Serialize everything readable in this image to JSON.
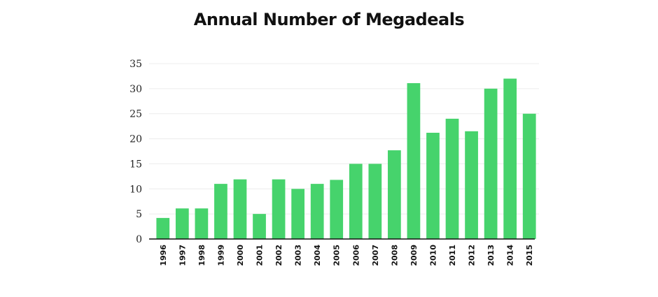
{
  "chart_data": {
    "type": "bar",
    "title": "Annual Number of Megadeals",
    "xlabel": "",
    "ylabel": "",
    "ylim": [
      0,
      35
    ],
    "yticks": [
      0,
      5,
      10,
      15,
      20,
      25,
      30,
      35
    ],
    "grid": true,
    "legend": "none",
    "bar_color": "#46d36c",
    "categories": [
      "1996",
      "1997",
      "1998",
      "1999",
      "2000",
      "2001",
      "2002",
      "2003",
      "2004",
      "2005",
      "2006",
      "2007",
      "2008",
      "2009",
      "2010",
      "2011",
      "2012",
      "2013",
      "2014",
      "2015"
    ],
    "values": [
      4.2,
      6.1,
      6.1,
      11,
      11.9,
      5,
      11.9,
      10,
      11,
      11.8,
      15,
      15,
      17.7,
      31.1,
      21.2,
      24,
      21.5,
      30,
      32,
      25
    ]
  }
}
